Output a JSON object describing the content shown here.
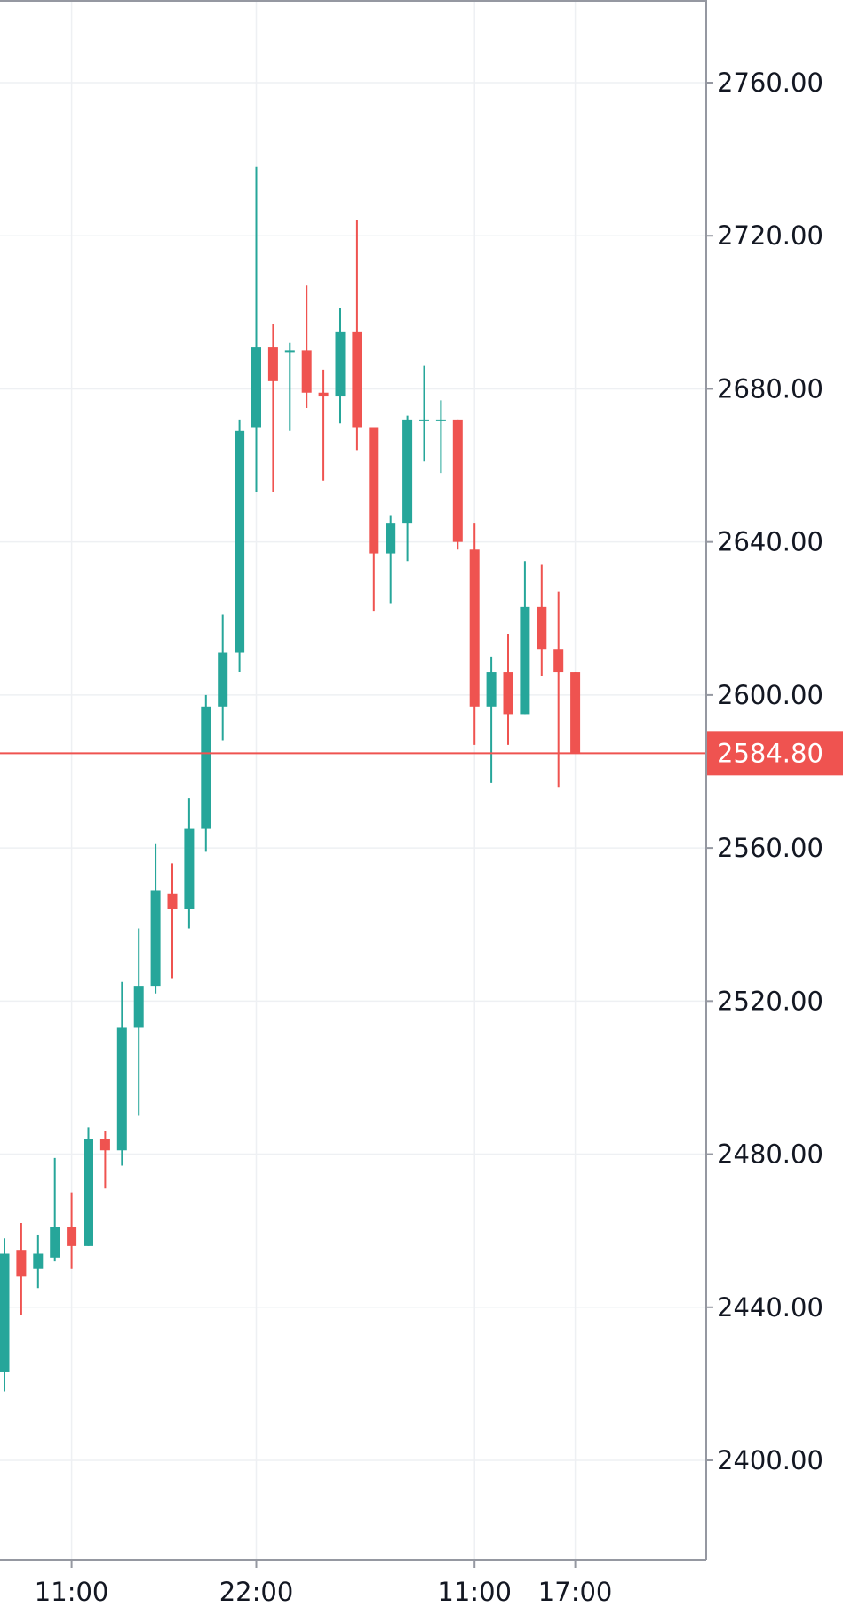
{
  "chart_data": {
    "type": "candlestick",
    "title": "",
    "xlabel": "",
    "ylabel": "",
    "ylim": [
      2374,
      2788
    ],
    "y_ticks": [
      2400,
      2440,
      2480,
      2520,
      2560,
      2600,
      2640,
      2680,
      2720,
      2760
    ],
    "y_tick_labels": [
      "2400.00",
      "2440.00",
      "2480.00",
      "2520.00",
      "2560.00",
      "2600.00",
      "2640.00",
      "2680.00",
      "2720.00",
      "2760.00"
    ],
    "x_tick_labels": [
      {
        "label": "11:00",
        "index": 4
      },
      {
        "label": "22:00",
        "index": 15
      },
      {
        "label": "11:00",
        "index": 28
      },
      {
        "label": "17:00",
        "index": 34
      }
    ],
    "last_price": {
      "value": 2584.8,
      "label": "2584.80"
    },
    "colors": {
      "up": "#26a69a",
      "down": "#ef5350",
      "grid": "#eef0f3",
      "axis": "#9598a1",
      "text": "#131722"
    },
    "grid": true,
    "candles": [
      {
        "open": 2423,
        "high": 2458,
        "low": 2418,
        "close": 2454
      },
      {
        "open": 2455,
        "high": 2462,
        "low": 2438,
        "close": 2448
      },
      {
        "open": 2450,
        "high": 2459,
        "low": 2445,
        "close": 2454
      },
      {
        "open": 2453,
        "high": 2479,
        "low": 2452,
        "close": 2461
      },
      {
        "open": 2461,
        "high": 2470,
        "low": 2450,
        "close": 2456
      },
      {
        "open": 2456,
        "high": 2487,
        "low": 2456,
        "close": 2484
      },
      {
        "open": 2484,
        "high": 2486,
        "low": 2471,
        "close": 2481
      },
      {
        "open": 2481,
        "high": 2525,
        "low": 2477,
        "close": 2513
      },
      {
        "open": 2513,
        "high": 2539,
        "low": 2490,
        "close": 2524
      },
      {
        "open": 2524,
        "high": 2561,
        "low": 2522,
        "close": 2549
      },
      {
        "open": 2548,
        "high": 2556,
        "low": 2526,
        "close": 2544
      },
      {
        "open": 2544,
        "high": 2573,
        "low": 2539,
        "close": 2565
      },
      {
        "open": 2565,
        "high": 2600,
        "low": 2559,
        "close": 2597
      },
      {
        "open": 2597,
        "high": 2621,
        "low": 2588,
        "close": 2611
      },
      {
        "open": 2611,
        "high": 2672,
        "low": 2606,
        "close": 2669
      },
      {
        "open": 2670,
        "high": 2738,
        "low": 2653,
        "close": 2691
      },
      {
        "open": 2691,
        "high": 2697,
        "low": 2653,
        "close": 2682
      },
      {
        "open": 2690,
        "high": 2692,
        "low": 2669,
        "close": 2690
      },
      {
        "open": 2690,
        "high": 2707,
        "low": 2675,
        "close": 2679
      },
      {
        "open": 2679,
        "high": 2685,
        "low": 2656,
        "close": 2678
      },
      {
        "open": 2678,
        "high": 2701,
        "low": 2671,
        "close": 2695
      },
      {
        "open": 2695,
        "high": 2724,
        "low": 2664,
        "close": 2670
      },
      {
        "open": 2670,
        "high": 2670,
        "low": 2622,
        "close": 2637
      },
      {
        "open": 2637,
        "high": 2647,
        "low": 2624,
        "close": 2645
      },
      {
        "open": 2645,
        "high": 2673,
        "low": 2635,
        "close": 2672
      },
      {
        "open": 2672,
        "high": 2686,
        "low": 2661,
        "close": 2672
      },
      {
        "open": 2672,
        "high": 2677,
        "low": 2658,
        "close": 2672
      },
      {
        "open": 2672,
        "high": 2672,
        "low": 2638,
        "close": 2640
      },
      {
        "open": 2638,
        "high": 2645,
        "low": 2587,
        "close": 2597
      },
      {
        "open": 2597,
        "high": 2610,
        "low": 2577,
        "close": 2606
      },
      {
        "open": 2606,
        "high": 2616,
        "low": 2587,
        "close": 2595
      },
      {
        "open": 2595,
        "high": 2635,
        "low": 2595,
        "close": 2623
      },
      {
        "open": 2623,
        "high": 2634,
        "low": 2605,
        "close": 2612
      },
      {
        "open": 2612,
        "high": 2627,
        "low": 2576,
        "close": 2606
      },
      {
        "open": 2606,
        "high": 2606,
        "low": 2584.8,
        "close": 2584.8
      }
    ]
  }
}
